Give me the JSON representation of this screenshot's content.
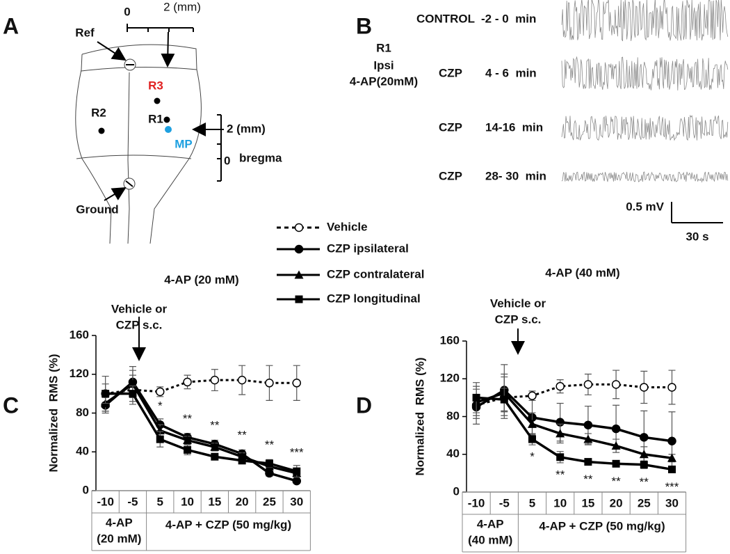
{
  "panels": [
    "A",
    "B",
    "C",
    "D"
  ],
  "diagram": {
    "ref": "Ref",
    "ground": "Ground",
    "top_scale": [
      "0",
      "2 (mm)"
    ],
    "side_scale": [
      "2 (mm)",
      "0",
      "bregma"
    ],
    "sites": {
      "R3": "R3",
      "R2": "R2",
      "R1": "R1",
      "MP": "MP"
    }
  },
  "traces": {
    "recording": [
      "R1",
      "Ipsi",
      "4-AP(20mM)"
    ],
    "rows": [
      {
        "condition": "CONTROL",
        "time": "-2 - 0  min"
      },
      {
        "condition": "CZP",
        "time": "4 - 6  min"
      },
      {
        "condition": "CZP",
        "time": "14-16  min"
      },
      {
        "condition": "CZP",
        "time": "28- 30  min"
      }
    ],
    "scale_v": "0.5 mV",
    "scale_t": "30 s"
  },
  "legend": {
    "names": [
      "Vehicle",
      "CZP ipsilateral",
      "CZP contralateral",
      "CZP longitudinal"
    ]
  },
  "chart_data": [
    {
      "type": "line",
      "title": "4-AP (20 mM)",
      "ylabel": "Normalized  RMS (%)",
      "annotation": [
        "Vehicle or",
        "CZP s.c."
      ],
      "categories": [
        "-10",
        "-5",
        "5",
        "10",
        "15",
        "20",
        "25",
        "30"
      ],
      "group_labels": [
        [
          "4-AP",
          "(20 mM)"
        ],
        [
          "4-AP + CZP (50 mg/kg)"
        ]
      ],
      "significance": [
        null,
        null,
        "*",
        "**",
        "**",
        "**",
        "**",
        "***"
      ],
      "ylim": [
        0,
        160
      ],
      "yticks": [
        0,
        40,
        80,
        120,
        160
      ],
      "series": [
        {
          "color": "#000000",
          "marker": "circle-open",
          "dash": true,
          "values": [
            100,
            104,
            102,
            112,
            114,
            114,
            111,
            111
          ],
          "errors": [
            18,
            15,
            5,
            7,
            11,
            15,
            18,
            18
          ]
        },
        {
          "color": "#000000",
          "marker": "circle",
          "dash": false,
          "values": [
            88,
            112,
            68,
            55,
            48,
            38,
            18,
            10
          ],
          "errors": [
            8,
            16,
            6,
            4,
            4,
            4,
            3,
            2
          ]
        },
        {
          "color": "#000000",
          "marker": "triangle",
          "dash": false,
          "values": [
            90,
            110,
            62,
            52,
            45,
            35,
            25,
            18
          ],
          "errors": [
            8,
            14,
            6,
            4,
            4,
            4,
            3,
            3
          ]
        },
        {
          "color": "#000000",
          "marker": "square",
          "dash": false,
          "values": [
            100,
            100,
            53,
            42,
            35,
            31,
            28,
            20
          ],
          "errors": [
            10,
            8,
            8,
            5,
            3,
            3,
            4,
            6
          ]
        }
      ]
    },
    {
      "type": "line",
      "title": "4-AP (40 mM)",
      "ylabel": "Normalized  RMS (%)",
      "annotation": [
        "Vehicle or",
        "CZP s.c."
      ],
      "categories": [
        "-10",
        "-5",
        "5",
        "10",
        "15",
        "20",
        "25",
        "30"
      ],
      "group_labels": [
        [
          "4-AP",
          "(40 mM)"
        ],
        [
          "4-AP + CZP (50 mg/kg)"
        ]
      ],
      "significance": [
        null,
        null,
        "*",
        "**",
        "**",
        "**",
        "**",
        "***"
      ],
      "ylim": [
        0,
        160
      ],
      "yticks": [
        0,
        40,
        80,
        120,
        160
      ],
      "series": [
        {
          "color": "#000000",
          "marker": "circle-open",
          "dash": true,
          "values": [
            92,
            100,
            102,
            112,
            114,
            114,
            111,
            111
          ],
          "errors": [
            20,
            22,
            5,
            7,
            11,
            15,
            17,
            18
          ]
        },
        {
          "color": "#000000",
          "marker": "circle",
          "dash": false,
          "values": [
            90,
            108,
            79,
            74,
            71,
            67,
            58,
            54
          ],
          "errors": [
            12,
            27,
            18,
            20,
            20,
            25,
            28,
            31
          ]
        },
        {
          "color": "#000000",
          "marker": "triangle",
          "dash": false,
          "values": [
            95,
            105,
            72,
            62,
            56,
            49,
            40,
            36
          ],
          "errors": [
            14,
            20,
            12,
            10,
            6,
            7,
            8,
            4
          ]
        },
        {
          "color": "#000000",
          "marker": "square",
          "dash": false,
          "values": [
            100,
            98,
            56,
            37,
            32,
            30,
            29,
            24
          ],
          "errors": [
            16,
            12,
            6,
            6,
            3,
            3,
            4,
            3
          ]
        }
      ]
    }
  ]
}
